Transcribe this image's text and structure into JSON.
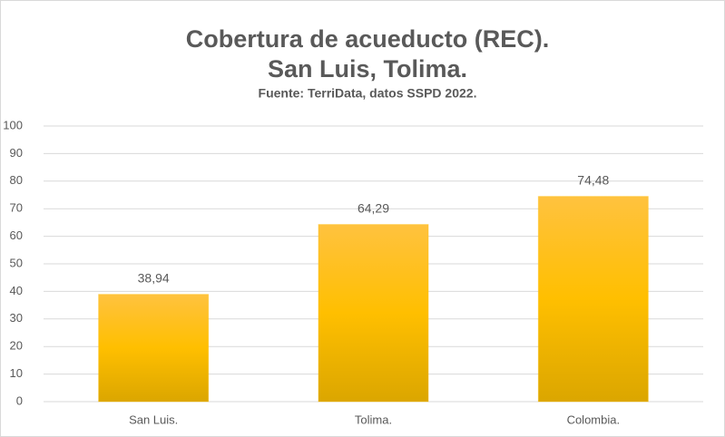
{
  "chart_data": {
    "type": "bar",
    "title": [
      "Cobertura de acueducto (REC).",
      "San Luis, Tolima."
    ],
    "subtitle": "Fuente: TerriData, datos SSPD 2022.",
    "categories": [
      "San Luis.",
      "Tolima.",
      "Colombia."
    ],
    "values": [
      38.94,
      64.29,
      74.48
    ],
    "value_labels": [
      "38,94",
      "64,29",
      "74,48"
    ],
    "color": "#ffc000",
    "ylim": [
      0,
      100
    ],
    "yticks": [
      0,
      10,
      20,
      30,
      40,
      50,
      60,
      70,
      80,
      90,
      100
    ],
    "grid": true
  }
}
